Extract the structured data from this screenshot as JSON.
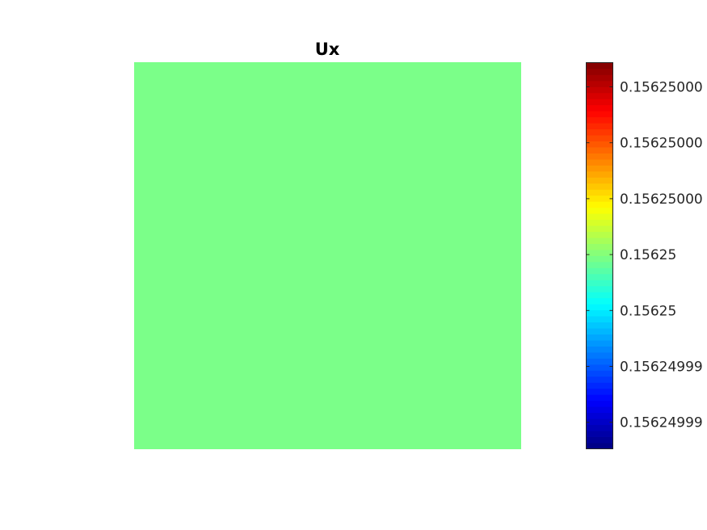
{
  "chart_data": {
    "type": "heatmap",
    "title": "Ux",
    "xlabel": "",
    "ylabel": "",
    "field_value": 0.15625,
    "field_color": "#7bff89",
    "colormap": "jet",
    "colormap_steps": 64,
    "colorbar": {
      "location": "right",
      "ticks": [
        "0.15625000",
        "0.15625000",
        "0.15625000",
        "0.15625",
        "0.15625",
        "0.15624999",
        "0.15624999"
      ]
    },
    "grid": false,
    "axes_visible": false
  }
}
